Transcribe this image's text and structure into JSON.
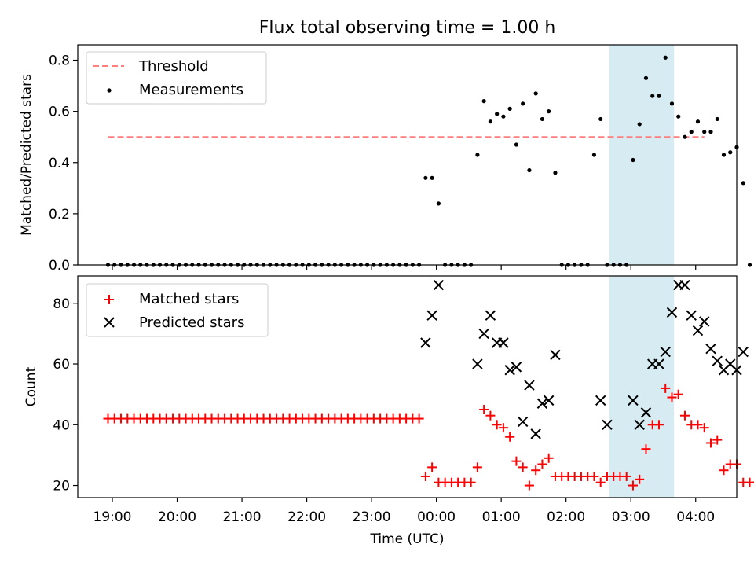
{
  "title": "Flux total observing time = 1.00 h",
  "colors": {
    "threshold": "#ff7f7f",
    "measurements": "#000000",
    "matched": "#ff0000",
    "predicted": "#000000",
    "highlight": "#add8e6"
  },
  "chart_data": [
    {
      "type": "scatter",
      "ylabel": "Matched/Predicted stars",
      "xlim": [
        "18:28",
        "04:38"
      ],
      "ylim": [
        0,
        0.86
      ],
      "yticks": [
        0.0,
        0.2,
        0.4,
        0.6,
        0.8
      ],
      "ytick_labels": [
        "0.0",
        "0.2",
        "0.4",
        "0.6",
        "0.8"
      ],
      "legend": {
        "placement": "upper-left",
        "entries": [
          "Threshold",
          "Measurements"
        ]
      },
      "highlight_span": {
        "x0": "02:40",
        "x1": "03:40"
      },
      "series": [
        {
          "name": "Threshold",
          "style": "dashed-line",
          "points": [
            [
              "18:56",
              0.5
            ],
            [
              "04:08",
              0.5
            ]
          ]
        },
        {
          "name": "Measurements",
          "style": "dot",
          "points": [
            [
              "18:56",
              0
            ],
            [
              "19:02",
              0
            ],
            [
              "19:08",
              0
            ],
            [
              "19:14",
              0
            ],
            [
              "19:20",
              0
            ],
            [
              "19:26",
              0
            ],
            [
              "19:32",
              0
            ],
            [
              "19:38",
              0
            ],
            [
              "19:44",
              0
            ],
            [
              "19:50",
              0
            ],
            [
              "19:56",
              0
            ],
            [
              "20:02",
              0
            ],
            [
              "20:08",
              0
            ],
            [
              "20:14",
              0
            ],
            [
              "20:20",
              0
            ],
            [
              "20:26",
              0
            ],
            [
              "20:32",
              0
            ],
            [
              "20:38",
              0
            ],
            [
              "20:44",
              0
            ],
            [
              "20:50",
              0
            ],
            [
              "20:56",
              0
            ],
            [
              "21:02",
              0
            ],
            [
              "21:08",
              0
            ],
            [
              "21:14",
              0
            ],
            [
              "21:20",
              0
            ],
            [
              "21:26",
              0
            ],
            [
              "21:32",
              0
            ],
            [
              "21:38",
              0
            ],
            [
              "21:44",
              0
            ],
            [
              "21:50",
              0
            ],
            [
              "21:56",
              0
            ],
            [
              "22:02",
              0
            ],
            [
              "22:08",
              0
            ],
            [
              "22:14",
              0
            ],
            [
              "22:20",
              0
            ],
            [
              "22:26",
              0
            ],
            [
              "22:32",
              0
            ],
            [
              "22:38",
              0
            ],
            [
              "22:44",
              0
            ],
            [
              "22:50",
              0
            ],
            [
              "22:56",
              0
            ],
            [
              "23:02",
              0
            ],
            [
              "23:08",
              0
            ],
            [
              "23:14",
              0
            ],
            [
              "23:20",
              0
            ],
            [
              "23:26",
              0
            ],
            [
              "23:32",
              0
            ],
            [
              "23:38",
              0
            ],
            [
              "23:44",
              0
            ],
            [
              "23:50",
              0.34
            ],
            [
              "23:56",
              0.34
            ],
            [
              "00:02",
              0.24
            ],
            [
              "00:08",
              0
            ],
            [
              "00:14",
              0
            ],
            [
              "00:20",
              0
            ],
            [
              "00:26",
              0
            ],
            [
              "00:32",
              0
            ],
            [
              "00:38",
              0.43
            ],
            [
              "00:44",
              0.64
            ],
            [
              "00:50",
              0.56
            ],
            [
              "00:56",
              0.59
            ],
            [
              "01:02",
              0.58
            ],
            [
              "01:08",
              0.61
            ],
            [
              "01:14",
              0.47
            ],
            [
              "01:20",
              0.63
            ],
            [
              "01:26",
              0.37
            ],
            [
              "01:32",
              0.67
            ],
            [
              "01:38",
              0.57
            ],
            [
              "01:44",
              0.6
            ],
            [
              "01:50",
              0.36
            ],
            [
              "01:56",
              0
            ],
            [
              "02:02",
              0
            ],
            [
              "02:08",
              0
            ],
            [
              "02:14",
              0
            ],
            [
              "02:20",
              0
            ],
            [
              "02:26",
              0.43
            ],
            [
              "02:32",
              0.57
            ],
            [
              "02:38",
              0
            ],
            [
              "02:44",
              0
            ],
            [
              "02:50",
              0
            ],
            [
              "02:56",
              0
            ],
            [
              "03:02",
              0.41
            ],
            [
              "03:08",
              0.55
            ],
            [
              "03:14",
              0.73
            ],
            [
              "03:20",
              0.66
            ],
            [
              "03:26",
              0.66
            ],
            [
              "03:32",
              0.81
            ],
            [
              "03:38",
              0.63
            ],
            [
              "03:44",
              0.58
            ],
            [
              "03:50",
              0.5
            ],
            [
              "03:56",
              0.52
            ],
            [
              "04:02",
              0.56
            ],
            [
              "04:08",
              0.52
            ],
            [
              "04:14",
              0.52
            ],
            [
              "04:20",
              0.57
            ],
            [
              "04:26",
              0.43
            ],
            [
              "04:32",
              0.44
            ],
            [
              "04:38",
              0.46
            ],
            [
              "04:44",
              0.32
            ],
            [
              "04:50",
              0
            ],
            [
              "04:56",
              0
            ]
          ]
        }
      ]
    },
    {
      "type": "scatter",
      "xlabel": "Time (UTC)",
      "ylabel": "Count",
      "xlim": [
        "18:28",
        "04:38"
      ],
      "ylim": [
        16,
        89
      ],
      "yticks": [
        20,
        40,
        60,
        80
      ],
      "ytick_labels": [
        "20",
        "40",
        "60",
        "80"
      ],
      "xticks": [
        "19:00",
        "20:00",
        "21:00",
        "22:00",
        "23:00",
        "00:00",
        "01:00",
        "02:00",
        "03:00",
        "04:00"
      ],
      "legend": {
        "placement": "upper-left",
        "entries": [
          "Matched stars",
          "Predicted stars"
        ]
      },
      "highlight_span": {
        "x0": "02:40",
        "x1": "03:40"
      },
      "series": [
        {
          "name": "Matched stars",
          "marker": "+",
          "points": [
            [
              "18:56",
              42
            ],
            [
              "19:02",
              42
            ],
            [
              "19:08",
              42
            ],
            [
              "19:14",
              42
            ],
            [
              "19:20",
              42
            ],
            [
              "19:26",
              42
            ],
            [
              "19:32",
              42
            ],
            [
              "19:38",
              42
            ],
            [
              "19:44",
              42
            ],
            [
              "19:50",
              42
            ],
            [
              "19:56",
              42
            ],
            [
              "20:02",
              42
            ],
            [
              "20:08",
              42
            ],
            [
              "20:14",
              42
            ],
            [
              "20:20",
              42
            ],
            [
              "20:26",
              42
            ],
            [
              "20:32",
              42
            ],
            [
              "20:38",
              42
            ],
            [
              "20:44",
              42
            ],
            [
              "20:50",
              42
            ],
            [
              "20:56",
              42
            ],
            [
              "21:02",
              42
            ],
            [
              "21:08",
              42
            ],
            [
              "21:14",
              42
            ],
            [
              "21:20",
              42
            ],
            [
              "21:26",
              42
            ],
            [
              "21:32",
              42
            ],
            [
              "21:38",
              42
            ],
            [
              "21:44",
              42
            ],
            [
              "21:50",
              42
            ],
            [
              "21:56",
              42
            ],
            [
              "22:02",
              42
            ],
            [
              "22:08",
              42
            ],
            [
              "22:14",
              42
            ],
            [
              "22:20",
              42
            ],
            [
              "22:26",
              42
            ],
            [
              "22:32",
              42
            ],
            [
              "22:38",
              42
            ],
            [
              "22:44",
              42
            ],
            [
              "22:50",
              42
            ],
            [
              "22:56",
              42
            ],
            [
              "23:02",
              42
            ],
            [
              "23:08",
              42
            ],
            [
              "23:14",
              42
            ],
            [
              "23:20",
              42
            ],
            [
              "23:26",
              42
            ],
            [
              "23:32",
              42
            ],
            [
              "23:38",
              42
            ],
            [
              "23:44",
              42
            ],
            [
              "23:50",
              23
            ],
            [
              "23:56",
              26
            ],
            [
              "00:02",
              21
            ],
            [
              "00:08",
              21
            ],
            [
              "00:14",
              21
            ],
            [
              "00:20",
              21
            ],
            [
              "00:26",
              21
            ],
            [
              "00:32",
              21
            ],
            [
              "00:38",
              26
            ],
            [
              "00:44",
              45
            ],
            [
              "00:50",
              43
            ],
            [
              "00:56",
              40
            ],
            [
              "01:02",
              39
            ],
            [
              "01:08",
              36
            ],
            [
              "01:14",
              28
            ],
            [
              "01:20",
              26
            ],
            [
              "01:26",
              20
            ],
            [
              "01:32",
              25
            ],
            [
              "01:38",
              27
            ],
            [
              "01:44",
              29
            ],
            [
              "01:50",
              23
            ],
            [
              "01:56",
              23
            ],
            [
              "02:02",
              23
            ],
            [
              "02:08",
              23
            ],
            [
              "02:14",
              23
            ],
            [
              "02:20",
              23
            ],
            [
              "02:26",
              23
            ],
            [
              "02:32",
              21
            ],
            [
              "02:38",
              23
            ],
            [
              "02:44",
              23
            ],
            [
              "02:50",
              23
            ],
            [
              "02:56",
              23
            ],
            [
              "03:02",
              20
            ],
            [
              "03:08",
              22
            ],
            [
              "03:14",
              32
            ],
            [
              "03:20",
              40
            ],
            [
              "03:26",
              40
            ],
            [
              "03:32",
              52
            ],
            [
              "03:38",
              49
            ],
            [
              "03:44",
              50
            ],
            [
              "03:50",
              43
            ],
            [
              "03:56",
              40
            ],
            [
              "04:02",
              40
            ],
            [
              "04:08",
              39
            ],
            [
              "04:14",
              34
            ],
            [
              "04:20",
              35
            ],
            [
              "04:26",
              25
            ],
            [
              "04:32",
              27
            ],
            [
              "04:38",
              27
            ],
            [
              "04:44",
              21
            ],
            [
              "04:50",
              21
            ],
            [
              "04:56",
              21
            ]
          ]
        },
        {
          "name": "Predicted stars",
          "marker": "x",
          "points": [
            [
              "23:50",
              67
            ],
            [
              "23:56",
              76
            ],
            [
              "00:02",
              86
            ],
            [
              "00:38",
              60
            ],
            [
              "00:44",
              70
            ],
            [
              "00:50",
              76
            ],
            [
              "00:56",
              67
            ],
            [
              "01:02",
              67
            ],
            [
              "01:08",
              58
            ],
            [
              "01:14",
              59
            ],
            [
              "01:20",
              41
            ],
            [
              "01:26",
              53
            ],
            [
              "01:32",
              37
            ],
            [
              "01:38",
              47
            ],
            [
              "01:44",
              48
            ],
            [
              "01:50",
              63
            ],
            [
              "02:32",
              48
            ],
            [
              "02:38",
              40
            ],
            [
              "03:02",
              48
            ],
            [
              "03:08",
              40
            ],
            [
              "03:14",
              44
            ],
            [
              "03:20",
              60
            ],
            [
              "03:26",
              60
            ],
            [
              "03:32",
              64
            ],
            [
              "03:38",
              77
            ],
            [
              "03:44",
              86
            ],
            [
              "03:50",
              86
            ],
            [
              "03:56",
              76
            ],
            [
              "04:02",
              71
            ],
            [
              "04:08",
              74
            ],
            [
              "04:14",
              65
            ],
            [
              "04:20",
              61
            ],
            [
              "04:26",
              58
            ],
            [
              "04:32",
              60
            ],
            [
              "04:38",
              58
            ],
            [
              "04:44",
              64
            ]
          ]
        }
      ]
    }
  ]
}
